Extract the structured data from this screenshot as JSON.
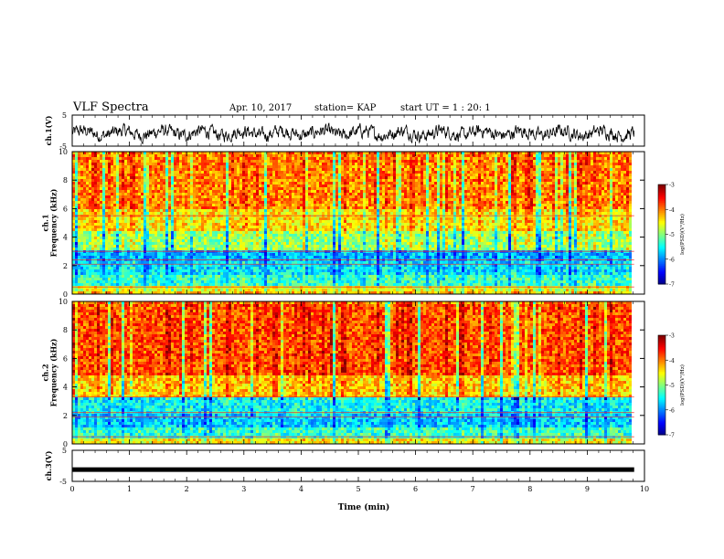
{
  "header": {
    "title": "VLF Spectra",
    "date": "Apr. 10, 2017",
    "station": "station= KAP",
    "start": "start  UT =   1 : 20: 1"
  },
  "chart_data": [
    {
      "type": "line",
      "panel": "ch1-waveform",
      "ylabel": "ch.1(V)",
      "ylim": [
        -5,
        5
      ],
      "yticks": [
        5,
        -5
      ],
      "xlim": [
        0,
        10
      ],
      "description_values": {
        "x_end": 9.82,
        "mean": 0.0,
        "amplitude": 2.0
      }
    },
    {
      "type": "heatmap",
      "panel": "ch1-spectrogram",
      "ylabel": "ch.1\nFrequency (kHz)",
      "ylabel_lines": [
        "ch.1",
        "Frequency (kHz)"
      ],
      "ylim": [
        0,
        10
      ],
      "yticks": [
        0,
        2,
        4,
        6,
        8,
        10
      ],
      "xlim": [
        0,
        10
      ],
      "x_end": 9.82,
      "colorbar": {
        "label": "log(PSD)(V²/Hz)",
        "range": [
          -7,
          -3
        ],
        "ticks": [
          -3,
          -4,
          -5,
          -6,
          -7
        ]
      },
      "bands": [
        {
          "from": 0,
          "to": 0.3,
          "level": -4.3
        },
        {
          "from": 0.3,
          "to": 0.7,
          "level": -4.6
        },
        {
          "from": 0.7,
          "to": 1.5,
          "level": -5.3
        },
        {
          "from": 1.5,
          "to": 2.5,
          "level": -5.6
        },
        {
          "from": 2.5,
          "to": 3.2,
          "level": -5.8
        },
        {
          "from": 3.2,
          "to": 4.5,
          "level": -4.9
        },
        {
          "from": 4.5,
          "to": 6.0,
          "level": -4.4
        },
        {
          "from": 6.0,
          "to": 10.0,
          "level": -4.0
        }
      ],
      "lines_khz": [
        0.5,
        2.1,
        2.4,
        3.0,
        5.5
      ]
    },
    {
      "type": "heatmap",
      "panel": "ch2-spectrogram",
      "ylabel": "ch.2\nFrequency (kHz)",
      "ylabel_lines": [
        "ch.2",
        "Frequency (kHz)"
      ],
      "ylim": [
        0,
        10
      ],
      "yticks": [
        0,
        2,
        4,
        6,
        8,
        10
      ],
      "xlim": [
        0,
        10
      ],
      "x_end": 9.82,
      "colorbar": {
        "label": "log(PSD)(V²/Hz)",
        "range": [
          -7,
          -3
        ],
        "ticks": [
          -3,
          -4,
          -5,
          -6,
          -7
        ]
      },
      "bands": [
        {
          "from": 0,
          "to": 0.4,
          "level": -4.5
        },
        {
          "from": 0.4,
          "to": 1.2,
          "level": -5.3
        },
        {
          "from": 1.2,
          "to": 2.2,
          "level": -5.7
        },
        {
          "from": 2.2,
          "to": 3.3,
          "level": -5.5
        },
        {
          "from": 3.3,
          "to": 5.0,
          "level": -4.3
        },
        {
          "from": 5.0,
          "to": 10.0,
          "level": -3.8
        }
      ],
      "lines_khz": [
        0.5,
        1.9,
        2.2,
        3.3
      ]
    },
    {
      "type": "line",
      "panel": "ch3-waveform",
      "ylabel": "ch.3(V)",
      "ylim": [
        -5,
        5
      ],
      "yticks": [
        5,
        -5
      ],
      "xlim": [
        0,
        10
      ],
      "xticks": [
        0,
        1,
        2,
        3,
        4,
        5,
        6,
        7,
        8,
        9,
        10
      ],
      "xlabel": "Time (min)",
      "constant_value": -1.2,
      "x_end": 9.82
    }
  ]
}
